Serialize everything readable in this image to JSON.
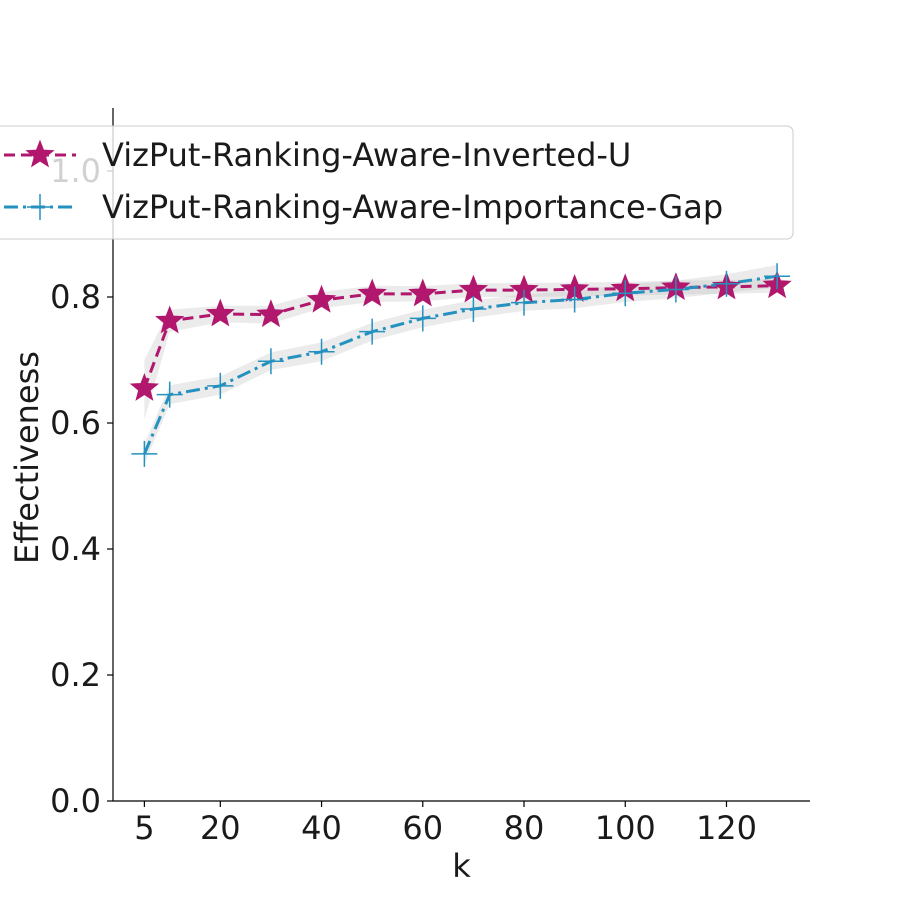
{
  "chart_data": {
    "type": "line",
    "title": "",
    "xlabel": "k",
    "ylabel": "Effectiveness",
    "xlim": [
      -1.2,
      136.5
    ],
    "ylim": [
      0,
      1.1
    ],
    "xticks": [
      5,
      20,
      40,
      60,
      80,
      100,
      120
    ],
    "xtick_labels": [
      "5",
      "20",
      "40",
      "60",
      "80",
      "100",
      "120"
    ],
    "yticks": [
      0.0,
      0.2,
      0.4,
      0.6,
      0.8,
      1.0
    ],
    "ytick_labels": [
      "0.0",
      "0.2",
      "0.4",
      "0.6",
      "0.8",
      "1.0"
    ],
    "grid": false,
    "legend": "top-left",
    "x": [
      5,
      10,
      20,
      30,
      40,
      50,
      60,
      70,
      80,
      90,
      100,
      110,
      120,
      130
    ],
    "series": [
      {
        "name": "VizPut-Ranking-Aware-Inverted-U",
        "color": "#b0176d",
        "line_style": "dashed",
        "marker": "star",
        "values": [
          0.655,
          0.762,
          0.773,
          0.772,
          0.795,
          0.805,
          0.805,
          0.811,
          0.811,
          0.812,
          0.813,
          0.815,
          0.816,
          0.818
        ],
        "band_low": [
          0.605,
          0.745,
          0.76,
          0.758,
          0.782,
          0.792,
          0.793,
          0.8,
          0.8,
          0.801,
          0.802,
          0.804,
          0.805,
          0.807
        ],
        "band_high": [
          0.7,
          0.78,
          0.786,
          0.786,
          0.808,
          0.818,
          0.817,
          0.822,
          0.822,
          0.823,
          0.824,
          0.826,
          0.827,
          0.829
        ]
      },
      {
        "name": "VizPut-Ranking-Aware-Importance-Gap",
        "color": "#2491bf",
        "line_style": "dashdot",
        "marker": "plus",
        "values": [
          0.551,
          0.645,
          0.659,
          0.698,
          0.713,
          0.745,
          0.766,
          0.781,
          0.791,
          0.796,
          0.806,
          0.812,
          0.821,
          0.833
        ],
        "band_low": [
          0.535,
          0.63,
          0.645,
          0.684,
          0.698,
          0.731,
          0.752,
          0.767,
          0.778,
          0.782,
          0.792,
          0.798,
          0.807,
          0.815
        ],
        "band_high": [
          0.567,
          0.66,
          0.674,
          0.712,
          0.728,
          0.759,
          0.78,
          0.795,
          0.804,
          0.81,
          0.82,
          0.826,
          0.836,
          0.851
        ]
      }
    ]
  }
}
